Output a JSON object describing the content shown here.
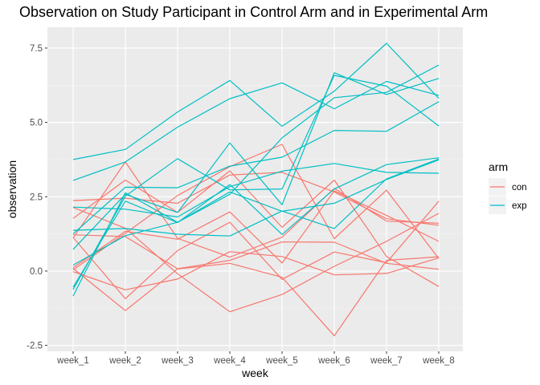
{
  "chart_data": {
    "type": "line",
    "title": "Observation on Study Participant in Control Arm and in Experimental Arm",
    "xlabel": "week",
    "ylabel": "observation",
    "categories": [
      "week_1",
      "week_2",
      "week_3",
      "week_4",
      "week_5",
      "week_6",
      "week_7",
      "week_8"
    ],
    "ylim": [
      -2.7,
      8.2
    ],
    "yticks": [
      -2.5,
      0.0,
      2.5,
      5.0,
      7.5
    ],
    "ytick_labels": [
      "-2.5",
      "0.0",
      "2.5",
      "5.0",
      "7.5"
    ],
    "grid": true,
    "legend": {
      "title": "arm",
      "position": "right",
      "entries": [
        {
          "label": "con",
          "color": "#F8766D"
        },
        {
          "label": "exp",
          "color": "#00BFC4"
        }
      ]
    },
    "series": [
      {
        "group": "con",
        "values": [
          1.11,
          3.67,
          1.1,
          0.47,
          1.14,
          2.78,
          1.68,
          1.61
        ]
      },
      {
        "group": "con",
        "values": [
          2.37,
          2.45,
          2.28,
          3.23,
          3.32,
          2.66,
          1.76,
          1.54
        ]
      },
      {
        "group": "con",
        "values": [
          0.11,
          1.34,
          1.07,
          1.99,
          0.27,
          2.7,
          1.87,
          1.0
        ]
      },
      {
        "group": "con",
        "values": [
          1.77,
          3.06,
          1.97,
          3.37,
          1.47,
          3.06,
          0.49,
          -0.52
        ]
      },
      {
        "group": "con",
        "values": [
          0.04,
          1.27,
          2.54,
          3.51,
          4.26,
          1.09,
          2.72,
          0.42
        ]
      },
      {
        "group": "con",
        "values": [
          -0.02,
          -0.63,
          -0.27,
          0.65,
          0.49,
          -0.13,
          -0.08,
          0.44
        ]
      },
      {
        "group": "con",
        "values": [
          0.09,
          -1.33,
          0.07,
          0.26,
          -0.21,
          -2.18,
          0.36,
          0.48
        ]
      },
      {
        "group": "con",
        "values": [
          1.22,
          1.16,
          0.08,
          0.36,
          0.98,
          0.97,
          0.26,
          0.06
        ]
      },
      {
        "group": "con",
        "values": [
          1.13,
          -0.93,
          0.69,
          1.64,
          -0.28,
          0.64,
          0.28,
          2.35
        ]
      },
      {
        "group": "con",
        "values": [
          2.14,
          1.44,
          -0.09,
          -1.37,
          -0.79,
          0.16,
          1.0,
          1.94
        ]
      },
      {
        "group": "exp",
        "values": [
          3.05,
          3.67,
          4.84,
          5.8,
          6.33,
          5.46,
          6.38,
          5.91
        ]
      },
      {
        "group": "exp",
        "values": [
          -0.84,
          2.63,
          1.64,
          2.58,
          4.48,
          5.83,
          6.01,
          6.93
        ]
      },
      {
        "group": "exp",
        "values": [
          2.15,
          2.08,
          1.82,
          2.84,
          3.36,
          3.62,
          3.32,
          3.29
        ]
      },
      {
        "group": "exp",
        "values": [
          -0.62,
          2.52,
          3.78,
          2.73,
          2.76,
          6.58,
          6.22,
          4.88
        ]
      },
      {
        "group": "exp",
        "values": [
          1.37,
          1.43,
          1.24,
          1.18,
          2.02,
          1.43,
          3.1,
          3.77
        ]
      },
      {
        "group": "exp",
        "values": [
          3.75,
          4.09,
          5.35,
          6.41,
          4.87,
          6.05,
          7.66,
          5.81
        ]
      },
      {
        "group": "exp",
        "values": [
          0.73,
          2.58,
          1.97,
          4.31,
          2.23,
          6.67,
          5.94,
          6.48
        ]
      },
      {
        "group": "exp",
        "values": [
          1.25,
          2.82,
          2.8,
          3.53,
          3.83,
          4.73,
          4.7,
          5.7
        ]
      },
      {
        "group": "exp",
        "values": [
          0.2,
          1.19,
          1.64,
          2.66,
          2.01,
          2.28,
          3.08,
          3.74
        ]
      },
      {
        "group": "exp",
        "values": [
          -0.54,
          2.35,
          1.63,
          2.91,
          1.23,
          2.76,
          3.58,
          3.81
        ]
      }
    ]
  }
}
